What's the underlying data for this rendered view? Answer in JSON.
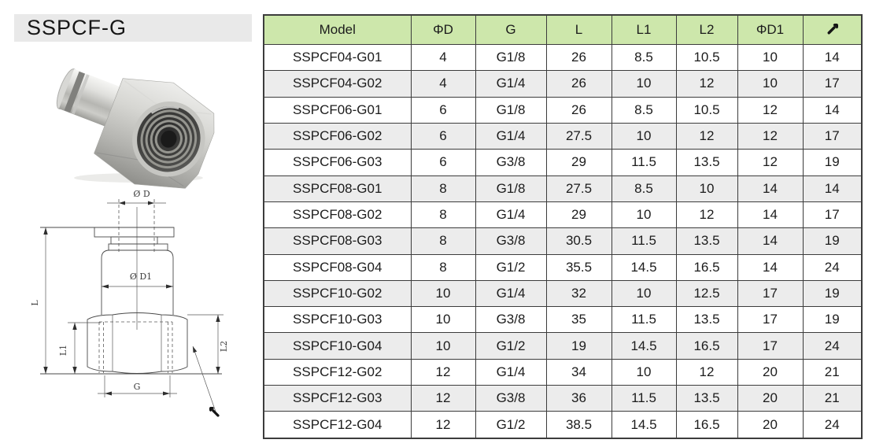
{
  "title": "SSPCF-G",
  "colors": {
    "header_green": "#cde7ab",
    "alt_row_gray": "#ececec",
    "table_border": "#3c3c3c",
    "title_bar_bg": "#e9e9e9"
  },
  "icons": {
    "table_header_last_column": "wrench-icon",
    "drawing_callout": "wrench-icon"
  },
  "drawing": {
    "labels": {
      "d": "Ø D",
      "d1": "Ø D1",
      "l": "L",
      "l1": "L1",
      "l2": "L2",
      "g": "G"
    }
  },
  "table": {
    "headers": [
      "Model",
      "ΦD",
      "G",
      "L",
      "L1",
      "L2",
      "ΦD1"
    ],
    "rows": [
      [
        "SSPCF04-G01",
        "4",
        "G1/8",
        "26",
        "8.5",
        "10.5",
        "10",
        "14"
      ],
      [
        "SSPCF04-G02",
        "4",
        "G1/4",
        "26",
        "10",
        "12",
        "10",
        "17"
      ],
      [
        "SSPCF06-G01",
        "6",
        "G1/8",
        "26",
        "8.5",
        "10.5",
        "12",
        "14"
      ],
      [
        "SSPCF06-G02",
        "6",
        "G1/4",
        "27.5",
        "10",
        "12",
        "12",
        "17"
      ],
      [
        "SSPCF06-G03",
        "6",
        "G3/8",
        "29",
        "11.5",
        "13.5",
        "12",
        "19"
      ],
      [
        "SSPCF08-G01",
        "8",
        "G1/8",
        "27.5",
        "8.5",
        "10",
        "14",
        "14"
      ],
      [
        "SSPCF08-G02",
        "8",
        "G1/4",
        "29",
        "10",
        "12",
        "14",
        "17"
      ],
      [
        "SSPCF08-G03",
        "8",
        "G3/8",
        "30.5",
        "11.5",
        "13.5",
        "14",
        "19"
      ],
      [
        "SSPCF08-G04",
        "8",
        "G1/2",
        "35.5",
        "14.5",
        "16.5",
        "14",
        "24"
      ],
      [
        "SSPCF10-G02",
        "10",
        "G1/4",
        "32",
        "10",
        "12.5",
        "17",
        "19"
      ],
      [
        "SSPCF10-G03",
        "10",
        "G3/8",
        "35",
        "11.5",
        "13.5",
        "17",
        "19"
      ],
      [
        "SSPCF10-G04",
        "10",
        "G1/2",
        "19",
        "14.5",
        "16.5",
        "17",
        "24"
      ],
      [
        "SSPCF12-G02",
        "12",
        "G1/4",
        "34",
        "10",
        "12",
        "20",
        "21"
      ],
      [
        "SSPCF12-G03",
        "12",
        "G3/8",
        "36",
        "11.5",
        "13.5",
        "20",
        "21"
      ],
      [
        "SSPCF12-G04",
        "12",
        "G1/2",
        "38.5",
        "14.5",
        "16.5",
        "20",
        "24"
      ]
    ]
  }
}
